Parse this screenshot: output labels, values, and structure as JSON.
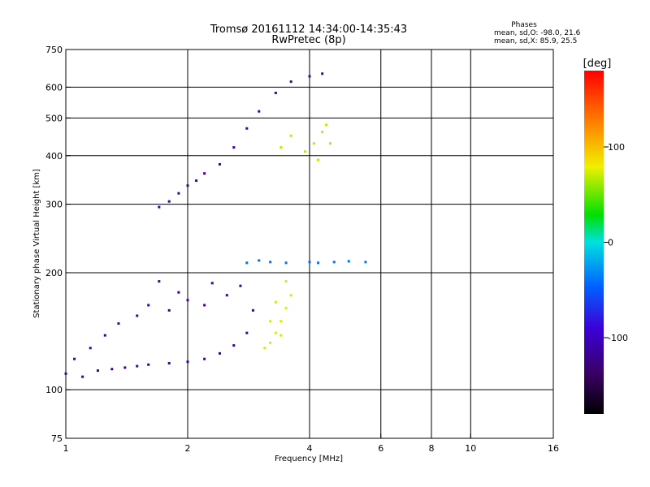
{
  "chart_data": {
    "type": "scatter",
    "title_line1": "Tromsø 20161112 14:34:00-14:35:43",
    "title_line2": "RwPretec (8p)",
    "stats_header": "Phases",
    "stats_line1": "mean, sd,O: -98.0, 21.6",
    "stats_line2": "mean, sd,X:  85.9, 25.5",
    "xlabel": "Frequency [MHz]",
    "ylabel": "Stationary phase Virtual Height [km]",
    "x_scale": "log",
    "y_scale": "log",
    "xlim": [
      1,
      16
    ],
    "ylim": [
      75,
      750
    ],
    "x_ticks": [
      1,
      2,
      4,
      6,
      8,
      10,
      16
    ],
    "y_ticks": [
      75,
      100,
      200,
      300,
      400,
      500,
      600,
      750
    ],
    "x_gridlines": [
      2,
      4,
      6,
      8,
      10
    ],
    "y_gridlines": [
      100,
      200,
      300,
      400,
      500,
      600
    ],
    "grid": true,
    "colorbar": {
      "label": "[deg]",
      "ticks": [
        -100,
        0,
        100
      ],
      "range": [
        -180,
        180
      ],
      "placement": "right",
      "colors": [
        "#000000",
        "#3a0066",
        "#3c00d8",
        "#0060ff",
        "#00e0e0",
        "#00e000",
        "#f0f000",
        "#ff8000",
        "#ff0000"
      ]
    },
    "series": [
      {
        "trace": "lower-O",
        "phase_deg": -110,
        "points": [
          [
            1.0,
            110
          ],
          [
            1.1,
            108
          ],
          [
            1.2,
            112
          ],
          [
            1.3,
            113
          ],
          [
            1.4,
            114
          ],
          [
            1.5,
            115
          ],
          [
            1.6,
            116
          ],
          [
            1.8,
            117
          ],
          [
            2.0,
            118
          ],
          [
            2.2,
            120
          ],
          [
            2.4,
            124
          ],
          [
            2.6,
            130
          ],
          [
            2.8,
            140
          ],
          [
            2.9,
            160
          ],
          [
            1.05,
            120
          ],
          [
            1.15,
            128
          ],
          [
            1.25,
            138
          ],
          [
            1.35,
            148
          ],
          [
            1.5,
            155
          ],
          [
            1.6,
            165
          ],
          [
            1.8,
            160
          ],
          [
            2.0,
            170
          ],
          [
            2.2,
            165
          ],
          [
            2.5,
            175
          ],
          [
            2.7,
            185
          ],
          [
            1.7,
            190
          ],
          [
            1.9,
            178
          ],
          [
            2.3,
            188
          ]
        ]
      },
      {
        "trace": "lower-X",
        "phase_deg": 85,
        "points": [
          [
            3.1,
            128
          ],
          [
            3.2,
            132
          ],
          [
            3.3,
            140
          ],
          [
            3.4,
            150
          ],
          [
            3.5,
            162
          ],
          [
            3.6,
            175
          ],
          [
            3.5,
            190
          ],
          [
            3.3,
            168
          ],
          [
            3.2,
            150
          ],
          [
            3.4,
            138
          ]
        ]
      },
      {
        "trace": "F1-ledge",
        "phase_deg": -40,
        "points": [
          [
            2.8,
            212
          ],
          [
            3.0,
            215
          ],
          [
            3.2,
            213
          ],
          [
            3.5,
            212
          ],
          [
            4.0,
            213
          ],
          [
            4.2,
            212
          ],
          [
            4.6,
            213
          ],
          [
            5.0,
            214
          ],
          [
            5.5,
            213
          ]
        ]
      },
      {
        "trace": "upper-O",
        "phase_deg": -105,
        "points": [
          [
            1.7,
            295
          ],
          [
            1.8,
            305
          ],
          [
            1.9,
            320
          ],
          [
            2.0,
            335
          ],
          [
            2.1,
            345
          ],
          [
            2.2,
            360
          ],
          [
            2.4,
            380
          ],
          [
            2.6,
            420
          ],
          [
            2.8,
            470
          ],
          [
            3.0,
            520
          ],
          [
            3.3,
            580
          ],
          [
            3.6,
            620
          ],
          [
            4.0,
            640
          ],
          [
            4.3,
            650
          ]
        ]
      },
      {
        "trace": "upper-X",
        "phase_deg": 80,
        "points": [
          [
            3.4,
            420
          ],
          [
            3.6,
            450
          ],
          [
            3.9,
            410
          ],
          [
            4.1,
            430
          ],
          [
            4.3,
            460
          ],
          [
            4.4,
            480
          ],
          [
            4.5,
            430
          ],
          [
            4.2,
            390
          ]
        ]
      }
    ]
  }
}
